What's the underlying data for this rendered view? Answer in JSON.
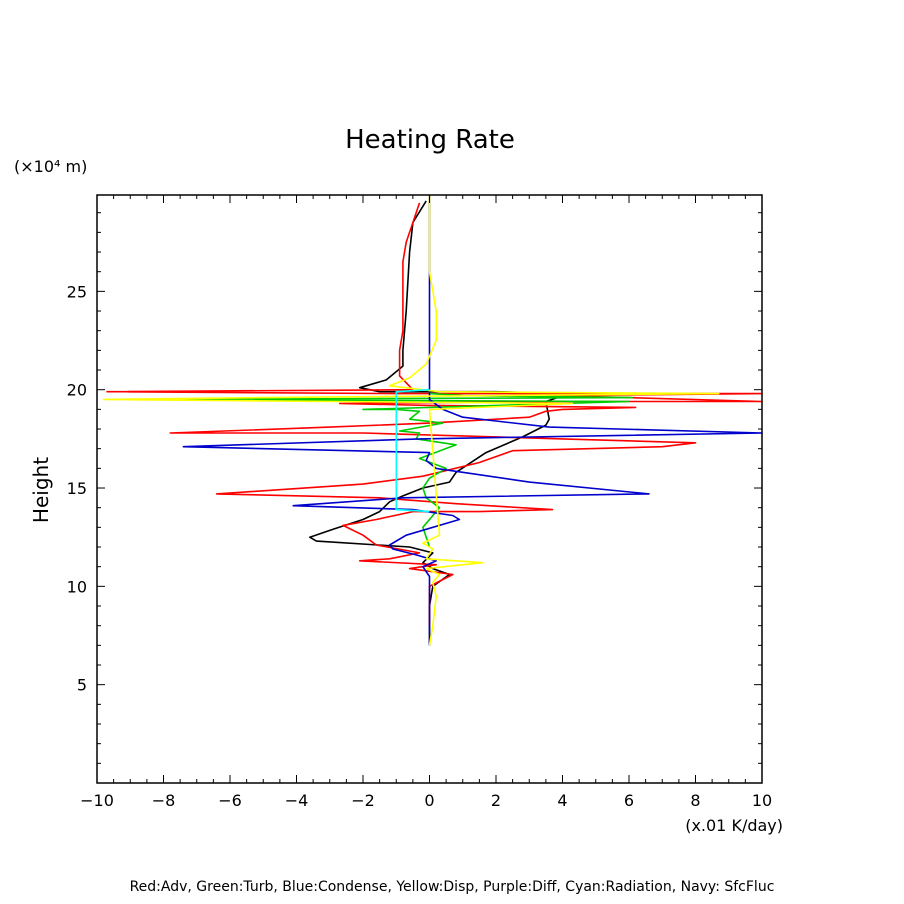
{
  "chart_data": {
    "type": "line",
    "title": "Heating Rate",
    "ylabel": "Height",
    "yunit": "(×10⁴ m)",
    "xunit": "(x.01 K/day)",
    "xlim": [
      -10,
      10
    ],
    "ylim": [
      0,
      29.9
    ],
    "xticks": [
      -10,
      -8,
      -6,
      -4,
      -2,
      0,
      2,
      4,
      6,
      8,
      10
    ],
    "yticks": [
      5,
      10,
      15,
      20,
      25
    ],
    "grid": false,
    "legend_text": "Red:Adv, Green:Turb, Blue:Condense, Yellow:Disp, Purple:Diff, Cyan:Radiation, Navy: SfcFluc",
    "series": [
      {
        "color": "#000000",
        "points": [
          [
            0,
            7
          ],
          [
            0,
            9
          ],
          [
            0.1,
            10
          ],
          [
            0.6,
            10.6
          ],
          [
            0.1,
            10.9
          ],
          [
            -0.2,
            11.2
          ],
          [
            0.1,
            11.7
          ],
          [
            -0.6,
            12
          ],
          [
            -3.4,
            12.3
          ],
          [
            -3.6,
            12.5
          ],
          [
            -2.9,
            12.9
          ],
          [
            -2,
            13.4
          ],
          [
            -1.5,
            13.8
          ],
          [
            -1.2,
            14.3
          ],
          [
            -0.8,
            14.6
          ],
          [
            -0.2,
            15
          ],
          [
            0.6,
            15.3
          ],
          [
            0.8,
            15.8
          ],
          [
            1.7,
            16.8
          ],
          [
            2.8,
            17.6
          ],
          [
            3.5,
            18.2
          ],
          [
            3.6,
            18.5
          ],
          [
            3.5,
            19.4
          ],
          [
            4.2,
            19.8
          ],
          [
            2,
            19.9
          ],
          [
            -1.5,
            19.9
          ],
          [
            -2.1,
            20.1
          ],
          [
            -1.3,
            20.5
          ],
          [
            -0.8,
            21.2
          ],
          [
            -0.8,
            22
          ],
          [
            -0.7,
            24
          ],
          [
            -0.6,
            27
          ],
          [
            -0.5,
            28.5
          ],
          [
            -0.1,
            29.6
          ]
        ]
      },
      {
        "color": "#ff0000",
        "points": [
          [
            0,
            8
          ],
          [
            0,
            10
          ],
          [
            0.7,
            10.6
          ],
          [
            -0.6,
            10.9
          ],
          [
            0.2,
            11.1
          ],
          [
            -2.1,
            11.3
          ],
          [
            -1.2,
            11.4
          ],
          [
            -0.3,
            11.7
          ],
          [
            -1.6,
            12.1
          ],
          [
            -2,
            12.6
          ],
          [
            -2.6,
            13.1
          ],
          [
            -1.6,
            13.4
          ],
          [
            -0.5,
            13.8
          ],
          [
            1.5,
            13.8
          ],
          [
            3.7,
            13.9
          ],
          [
            0.8,
            14.2
          ],
          [
            -1.5,
            14.5
          ],
          [
            -6.4,
            14.7
          ],
          [
            -2,
            15.2
          ],
          [
            -0.2,
            15.6
          ],
          [
            1.5,
            16.3
          ],
          [
            2.5,
            16.9
          ],
          [
            7,
            17.1
          ],
          [
            8,
            17.3
          ],
          [
            4,
            17.5
          ],
          [
            -2,
            17.8
          ],
          [
            -7.8,
            17.8
          ],
          [
            -3,
            18.1
          ],
          [
            0,
            18.3
          ],
          [
            3,
            18.6
          ],
          [
            3.5,
            18.9
          ],
          [
            4,
            19
          ],
          [
            6.2,
            19.1
          ],
          [
            0,
            19.2
          ],
          [
            -2.7,
            19.3
          ],
          [
            4,
            19.4
          ],
          [
            10,
            19.4
          ],
          [
            6,
            19.6
          ],
          [
            3.5,
            19.7
          ],
          [
            10,
            19.8
          ],
          [
            -1,
            19.8
          ],
          [
            -9.7,
            19.9
          ],
          [
            -0.5,
            20
          ],
          [
            -0.9,
            20.7
          ],
          [
            -0.9,
            21.5
          ],
          [
            -0.9,
            22
          ],
          [
            -0.8,
            23
          ],
          [
            -0.8,
            25
          ],
          [
            -0.8,
            26.5
          ],
          [
            -0.7,
            27.5
          ],
          [
            -0.5,
            28.5
          ],
          [
            -0.3,
            29.5
          ]
        ]
      },
      {
        "color": "#00cc00",
        "points": [
          [
            0,
            12
          ],
          [
            -0.2,
            13
          ],
          [
            0.3,
            14
          ],
          [
            -0.1,
            14.5
          ],
          [
            -0.2,
            15
          ],
          [
            0,
            15.5
          ],
          [
            0.5,
            16
          ],
          [
            -0.3,
            16.5
          ],
          [
            0.8,
            17.2
          ],
          [
            -0.4,
            17.5
          ],
          [
            -0.3,
            17.8
          ],
          [
            -0.9,
            17.9
          ],
          [
            0.4,
            18.3
          ],
          [
            -0.6,
            18.5
          ],
          [
            -0.3,
            18.9
          ],
          [
            -1,
            19
          ],
          [
            -2,
            19
          ],
          [
            6,
            19.4
          ],
          [
            -8.5,
            19.5
          ],
          [
            6.1,
            19.6
          ],
          [
            1,
            19.7
          ],
          [
            0,
            19.8
          ],
          [
            0,
            20
          ]
        ]
      },
      {
        "color": "#0000cc",
        "points": [
          [
            0,
            7
          ],
          [
            0,
            10.5
          ],
          [
            -0.2,
            11
          ],
          [
            0.2,
            11.3
          ],
          [
            -0.4,
            11.6
          ],
          [
            -1.1,
            11.9
          ],
          [
            -1.2,
            12.1
          ],
          [
            -0.7,
            12.6
          ],
          [
            0.9,
            13.4
          ],
          [
            0.7,
            13.6
          ],
          [
            -0.5,
            13.9
          ],
          [
            -4.1,
            14.1
          ],
          [
            -0.8,
            14.5
          ],
          [
            6.6,
            14.7
          ],
          [
            3,
            15.3
          ],
          [
            0.2,
            16
          ],
          [
            -0.1,
            16.4
          ],
          [
            0,
            16.8
          ],
          [
            -7.4,
            17.1
          ],
          [
            -0.3,
            17.5
          ],
          [
            10,
            17.8
          ],
          [
            3.6,
            18.1
          ],
          [
            1,
            18.6
          ],
          [
            0.4,
            19
          ],
          [
            0,
            19.5
          ],
          [
            0,
            29.9
          ]
        ]
      },
      {
        "color": "#ffff00",
        "points": [
          [
            0,
            7
          ],
          [
            0.1,
            8
          ],
          [
            0.2,
            9.5
          ],
          [
            0.1,
            10.2
          ],
          [
            0.3,
            10.6
          ],
          [
            -0.1,
            10.9
          ],
          [
            1.6,
            11.2
          ],
          [
            -0.1,
            11.4
          ],
          [
            0.1,
            11.9
          ],
          [
            -0.2,
            12.2
          ],
          [
            0.3,
            12.6
          ],
          [
            0,
            19
          ],
          [
            4.3,
            19.3
          ],
          [
            -9.8,
            19.5
          ],
          [
            -5,
            19.6
          ],
          [
            8.7,
            19.8
          ],
          [
            0.3,
            19.9
          ],
          [
            -1.2,
            20.2
          ],
          [
            -0.6,
            20.6
          ],
          [
            -0.1,
            21.3
          ],
          [
            0.2,
            22.5
          ],
          [
            0.2,
            24
          ],
          [
            0,
            26
          ],
          [
            0,
            28
          ],
          [
            0,
            29.9
          ]
        ]
      },
      {
        "color": "#00ffff",
        "points": [
          [
            0,
            13.8
          ],
          [
            -1,
            13.9
          ],
          [
            -1,
            15
          ],
          [
            -1,
            17
          ],
          [
            -1,
            19.9
          ],
          [
            0,
            20
          ]
        ]
      }
    ]
  }
}
